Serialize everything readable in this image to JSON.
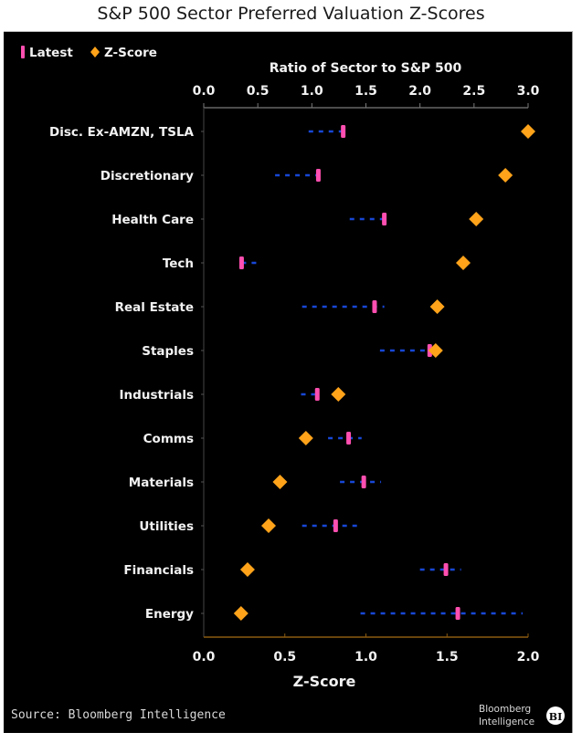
{
  "title": "S&P 500 Sector Preferred Valuation Z-Scores",
  "source": "Source: Bloomberg Intelligence",
  "brand": {
    "line1": "Bloomberg",
    "line2": "Intelligence",
    "badge": "BI"
  },
  "colors": {
    "latest": "#ff4fb0",
    "zscore": "#ffa31a",
    "range": "#1747d6",
    "background": "#000000",
    "bottom_axis": "#8a5a10",
    "top_axis": "#7a7a7a"
  },
  "chart_data": {
    "type": "scatter",
    "title": "S&P 500 Sector Preferred Valuation Z-Scores",
    "legend": {
      "position": "top-left",
      "entries": [
        "Latest",
        "Z-Score"
      ]
    },
    "categories": [
      "Disc. Ex-AMZN, TSLA",
      "Discretionary",
      "Health Care",
      "Tech",
      "Real Estate",
      "Staples",
      "Industrials",
      "Comms",
      "Materials",
      "Utilities",
      "Financials",
      "Energy"
    ],
    "top_axis": {
      "label": "Ratio of Sector to S&P 500",
      "range": [
        0.0,
        3.0
      ],
      "ticks": [
        "0.0",
        "0.5",
        "1.0",
        "1.5",
        "2.0",
        "2.5",
        "3.0"
      ]
    },
    "bottom_axis": {
      "label": "Z-Score",
      "range": [
        0.0,
        2.0
      ],
      "ticks": [
        "0.0",
        "0.5",
        "1.0",
        "1.5",
        "2.0"
      ]
    },
    "series": [
      {
        "name": "Latest",
        "axis": "top",
        "values": [
          1.29,
          1.06,
          1.67,
          0.35,
          1.58,
          2.09,
          1.05,
          1.34,
          1.48,
          1.22,
          2.24,
          2.35
        ]
      },
      {
        "name": "Range",
        "axis": "top",
        "low": [
          0.97,
          0.66,
          1.35,
          0.35,
          0.91,
          1.63,
          0.9,
          1.15,
          1.26,
          0.91,
          2.0,
          1.45
        ],
        "high": [
          1.29,
          1.06,
          1.67,
          0.52,
          1.67,
          2.09,
          1.07,
          1.46,
          1.64,
          1.43,
          2.38,
          2.95
        ]
      },
      {
        "name": "Z-Score",
        "axis": "bottom",
        "values": [
          2.0,
          1.86,
          1.68,
          1.6,
          1.44,
          1.43,
          0.83,
          0.63,
          0.47,
          0.4,
          0.27,
          0.23
        ]
      }
    ],
    "grid": false
  }
}
